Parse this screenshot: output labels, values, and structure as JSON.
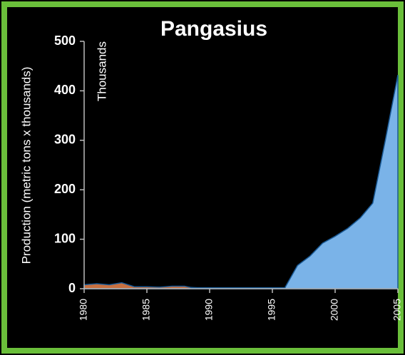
{
  "chart_data": {
    "type": "area",
    "title": "Pangasius",
    "y_label": "Production (metric tons x thousands)",
    "annotation": "Thousands",
    "x": [
      1980,
      1981,
      1982,
      1983,
      1984,
      1985,
      1986,
      1987,
      1988,
      1989,
      1990,
      1991,
      1992,
      1993,
      1994,
      1995,
      1996,
      1997,
      1998,
      1999,
      2000,
      2001,
      2002,
      2003,
      2004,
      2005
    ],
    "series": [
      {
        "color": "#7ab3e8",
        "values": [
          2,
          2,
          2,
          2,
          3,
          3,
          3,
          3,
          3,
          2,
          2,
          2,
          2,
          2,
          2,
          2,
          2,
          47,
          66,
          92,
          106,
          122,
          143,
          173,
          300,
          432
        ]
      },
      {
        "color": "#c87040",
        "values": [
          8,
          10,
          8,
          12,
          4,
          4,
          3,
          5,
          5,
          0,
          0,
          0,
          0,
          0,
          0,
          0,
          0,
          0,
          0,
          0,
          0,
          0,
          0,
          0,
          0,
          0
        ]
      }
    ],
    "xlim": [
      1980,
      2005
    ],
    "xticks": [
      1980,
      1985,
      1990,
      1995,
      2000,
      2005
    ],
    "ylim": [
      0,
      500
    ],
    "yticks": [
      0,
      100,
      200,
      300,
      400,
      500
    ]
  }
}
